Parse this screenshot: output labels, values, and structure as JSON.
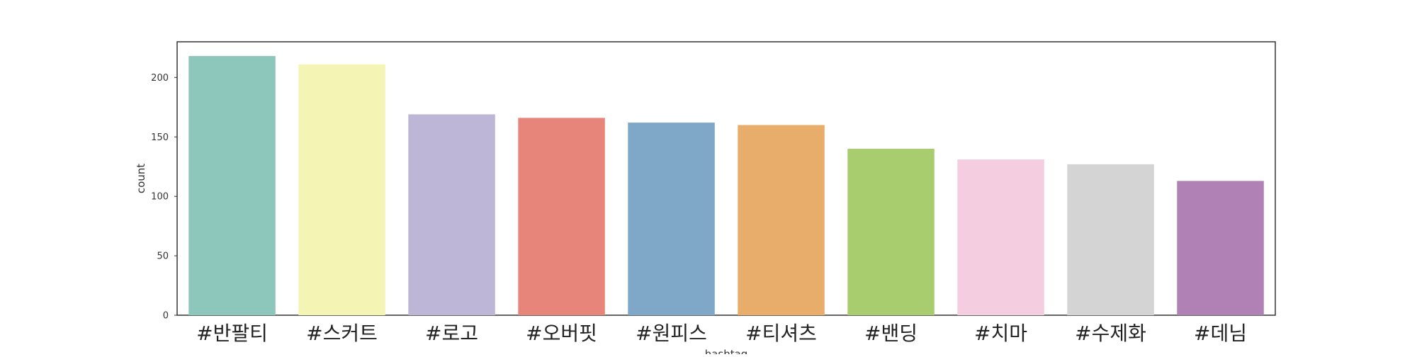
{
  "chart_data": {
    "type": "bar",
    "categories": [
      "#반팔티",
      "#스커트",
      "#로고",
      "#오버핏",
      "#원피스",
      "#티셔츠",
      "#밴딩",
      "#치마",
      "#수제화",
      "#데님"
    ],
    "values": [
      218,
      211,
      169,
      166,
      162,
      160,
      140,
      131,
      127,
      113
    ],
    "colors": [
      "#8dc7bc",
      "#f4f4b5",
      "#bdb6d6",
      "#e8857a",
      "#7fa8c8",
      "#e8ad6a",
      "#a8cd6e",
      "#f4cde0",
      "#d4d4d4",
      "#b081b4"
    ],
    "xlabel": "hashtag",
    "ylabel": "count",
    "ylim": [
      0,
      230
    ],
    "yticks": [
      0,
      50,
      100,
      150,
      200
    ],
    "grid": false,
    "legend": "none"
  }
}
